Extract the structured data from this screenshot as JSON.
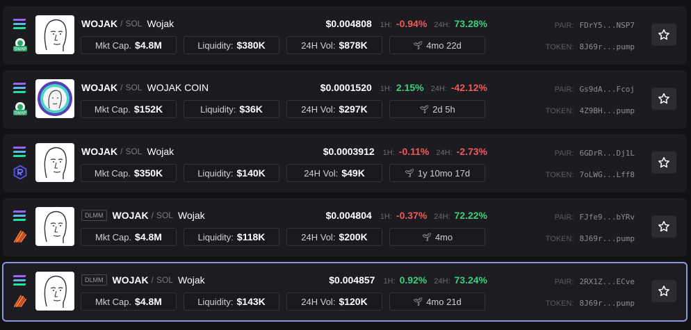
{
  "stat_labels": {
    "mkt_cap": "Mkt Cap.",
    "liquidity": "Liquidity:",
    "volume": "24H Vol:",
    "h1": "1H:",
    "h24": "24H:",
    "pair": "PAIR:",
    "token": "TOKEN:"
  },
  "rows": [
    {
      "badge": "",
      "symbol": "WOJAK",
      "quote": "SOL",
      "name": "Wojak",
      "price": "$0.004808",
      "change_1h": "-0.94%",
      "change_24h": "73.28%",
      "mkt_cap": "$4.8M",
      "liquidity": "$380K",
      "volume": "$878K",
      "age": "4mo 22d",
      "pair_addr": "FDrY5...NSP7",
      "token_addr": "8J69r...pump",
      "dex_icon": "swap-icon",
      "avatar_icon": "wojak-face-icon"
    },
    {
      "badge": "",
      "symbol": "WOJAK",
      "quote": "SOL",
      "name": "WOJAK COIN",
      "price": "$0.0001520",
      "change_1h": "2.15%",
      "change_24h": "-42.12%",
      "mkt_cap": "$152K",
      "liquidity": "$36K",
      "volume": "$297K",
      "age": "2d 5h",
      "pair_addr": "Gs9dA...Fcoj",
      "token_addr": "4Z9BH...pump",
      "dex_icon": "swap-icon",
      "avatar_icon": "wojak-coin-icon"
    },
    {
      "badge": "",
      "symbol": "WOJAK",
      "quote": "SOL",
      "name": "Wojak",
      "price": "$0.0003912",
      "change_1h": "-0.11%",
      "change_24h": "-2.73%",
      "mkt_cap": "$350K",
      "liquidity": "$140K",
      "volume": "$49K",
      "age": "1y 10mo 17d",
      "pair_addr": "6GDrR...Dj1L",
      "token_addr": "7oLWG...Lff8",
      "dex_icon": "raydium-icon",
      "avatar_icon": "wojak-face-icon"
    },
    {
      "badge": "DLMM",
      "symbol": "WOJAK",
      "quote": "SOL",
      "name": "Wojak",
      "price": "$0.004804",
      "change_1h": "-0.37%",
      "change_24h": "72.22%",
      "mkt_cap": "$4.8M",
      "liquidity": "$118K",
      "volume": "$200K",
      "age": "4mo",
      "pair_addr": "FJfe9...bYRv",
      "token_addr": "8J69r...pump",
      "dex_icon": "meteora-icon",
      "avatar_icon": "wojak-face-icon"
    },
    {
      "badge": "DLMM",
      "symbol": "WOJAK",
      "quote": "SOL",
      "name": "Wojak",
      "price": "$0.004857",
      "change_1h": "0.92%",
      "change_24h": "73.24%",
      "mkt_cap": "$4.8M",
      "liquidity": "$143K",
      "volume": "$120K",
      "age": "4mo 21d",
      "pair_addr": "2RX1Z...ECve",
      "token_addr": "8J69r...pump",
      "dex_icon": "meteora-icon",
      "avatar_icon": "wojak-face-icon"
    }
  ],
  "colors": {
    "positive": "#3ecf7d",
    "negative": "#ef5b5b",
    "selected_border": "#8b98e6"
  }
}
